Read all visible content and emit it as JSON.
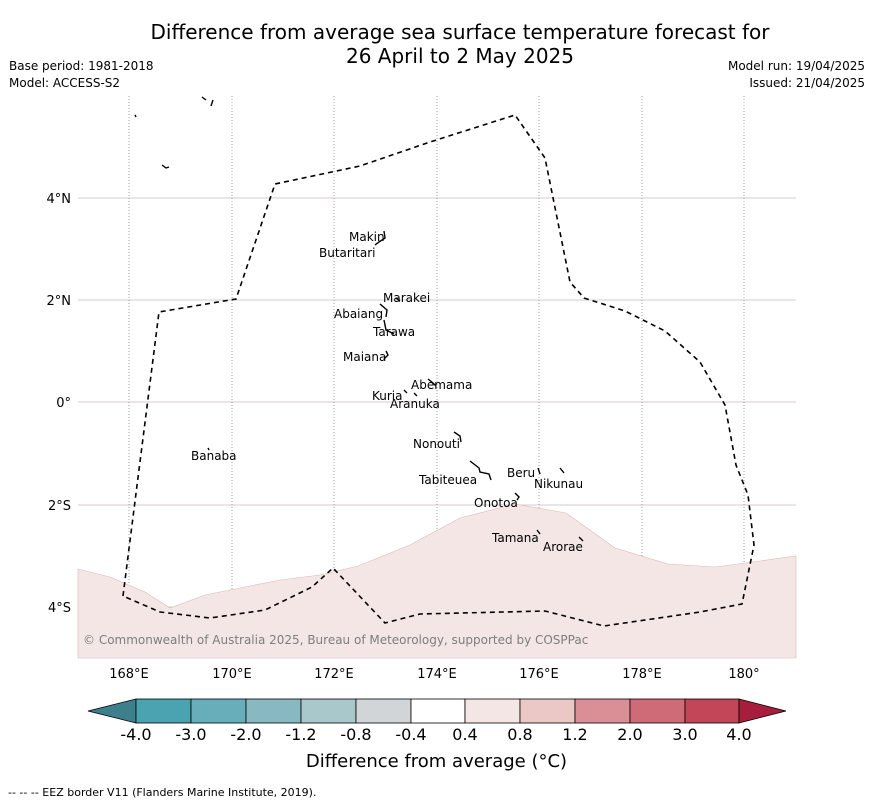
{
  "title": {
    "line1": "Difference from average sea surface temperature forecast for",
    "line2": "26 April to 2 May 2025"
  },
  "meta_left": {
    "base_period": "Base period: 1981-2018",
    "model": "Model: ACCESS-S2"
  },
  "meta_right": {
    "model_run": "Model run: 19/04/2025",
    "issued": "Issued: 21/04/2025"
  },
  "map": {
    "lat_labels": [
      "4°N",
      "2°N",
      "0°",
      "2°S",
      "4°S"
    ],
    "lon_labels": [
      "168°E",
      "170°E",
      "172°E",
      "174°E",
      "176°E",
      "178°E",
      "180°"
    ],
    "copyright": "© Commonwealth of Australia 2025, Bureau of Meteorology, supported by COSPPac",
    "islands": [
      "Makin",
      "Butaritari",
      "Marakei",
      "Abaiang",
      "Tarawa",
      "Maiana",
      "Abemama",
      "Kuria",
      "Aranuka",
      "Banaba",
      "Nonouti",
      "Beru",
      "Nikunau",
      "Tabiteuea",
      "Onotoa",
      "Tamana",
      "Arorae"
    ],
    "anomaly_fill_color": "#f5e6e6",
    "eez_line_style": "dashed"
  },
  "colorbar": {
    "tick_labels": [
      "-4.0",
      "-3.0",
      "-2.0",
      "-1.2",
      "-0.8",
      "-0.4",
      "0.4",
      "0.8",
      "1.2",
      "2.0",
      "3.0",
      "4.0"
    ],
    "colors": [
      "#3e7f8d",
      "#49a3b1",
      "#67adba",
      "#88b8c2",
      "#a9c8cc",
      "#d1d5d8",
      "#ffffff",
      "#f5e6e6",
      "#ebc8c6",
      "#da8e96",
      "#cf6b77",
      "#c24657",
      "#a71d3c"
    ],
    "label": "Difference from average (°C)"
  },
  "footnote": "--  --  -- EEZ border V11 (Flanders Marine Institute, 2019)."
}
